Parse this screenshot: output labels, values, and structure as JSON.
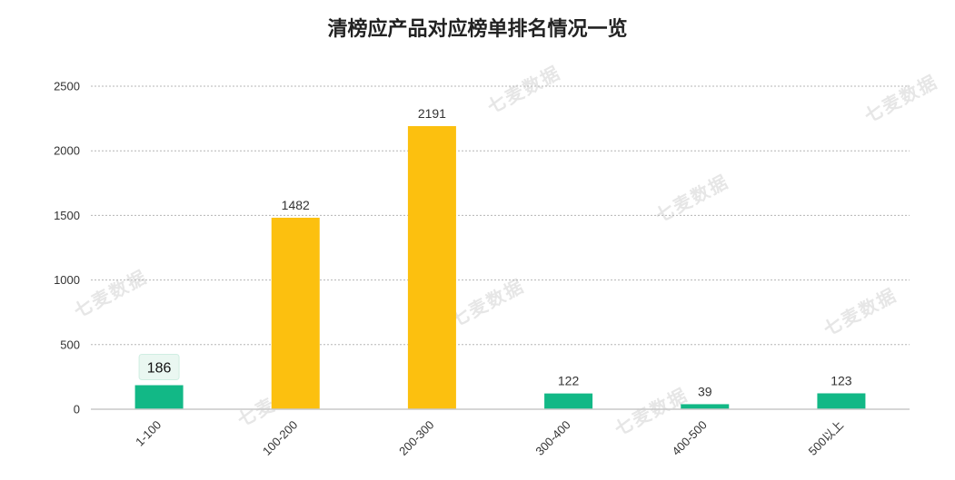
{
  "watermark": "七麦数据",
  "chart_data": {
    "type": "bar",
    "title": "清榜应产品对应榜单排名情况一览",
    "xlabel": "",
    "ylabel": "",
    "categories": [
      "1-100",
      "100-200",
      "200-300",
      "300-400",
      "400-500",
      "500以上"
    ],
    "values": [
      186,
      1482,
      2191,
      122,
      39,
      123
    ],
    "bar_colors": [
      "#12b886",
      "#fcc00f",
      "#fcc00f",
      "#12b886",
      "#12b886",
      "#12b886"
    ],
    "ylim": [
      0,
      2500
    ],
    "yticks": [
      0,
      500,
      1000,
      1500,
      2000,
      2500
    ],
    "grid": true,
    "legend": "none"
  }
}
